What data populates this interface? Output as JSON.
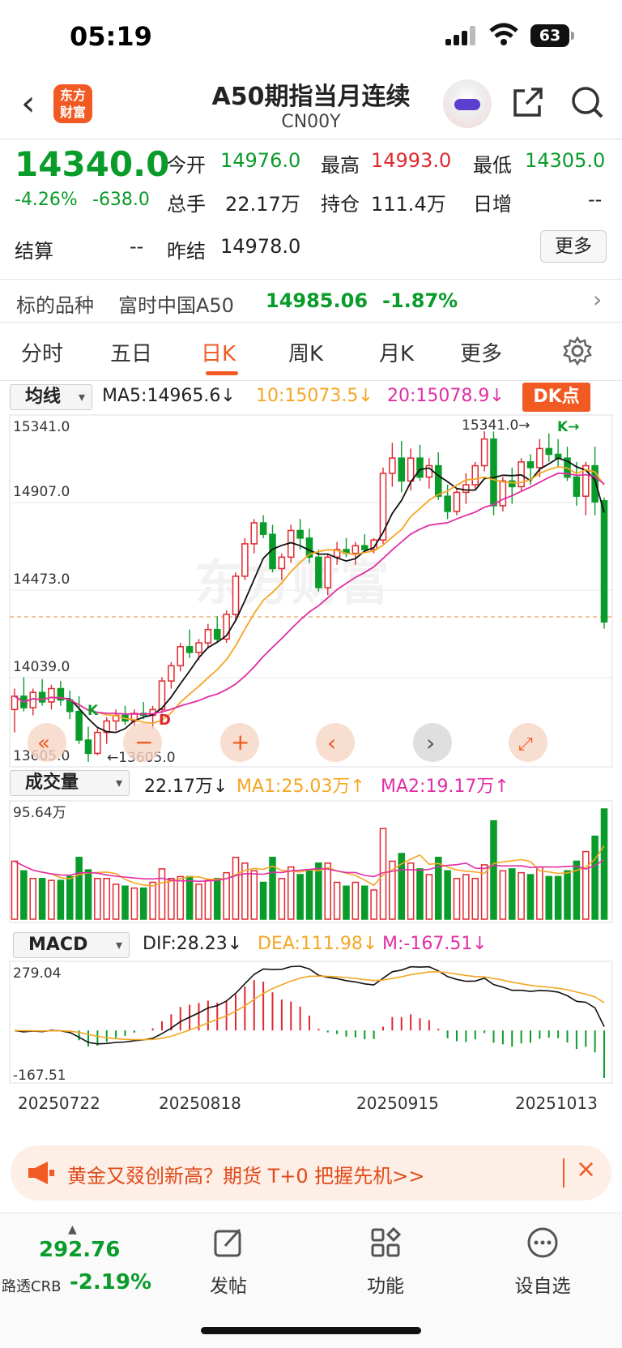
{
  "status": {
    "time": "05:19",
    "battery": "63"
  },
  "header": {
    "logo_text": "东方财富",
    "title": "A50期指当月连续",
    "code": "CN00Y"
  },
  "quote": {
    "price": "14340.0",
    "change_pct": "-4.26%",
    "change": "-638.0",
    "open_label": "今开",
    "open": "14976.0",
    "high_label": "最高",
    "high": "14993.0",
    "low_label": "最低",
    "low": "14305.0",
    "volume_label": "总手",
    "volume": "22.17万",
    "oi_label": "持仓",
    "oi": "111.4万",
    "day_inc_label": "日增",
    "day_inc": "--",
    "settle_label": "结算",
    "settle": "--",
    "prev_settle_label": "昨结",
    "prev_settle": "14978.0",
    "more_label": "更多"
  },
  "underlying": {
    "label": "标的品种",
    "name": "富时中国A50",
    "price": "14985.06",
    "change": "-1.87%"
  },
  "tabs": [
    "分时",
    "五日",
    "日K",
    "周K",
    "月K",
    "更多"
  ],
  "active_tab": "日K",
  "kline": {
    "selector": "均线",
    "ma5": "MA5:14965.6↓",
    "ma10": "10:15073.5↓",
    "ma20": "20:15078.9↓",
    "dk_label": "DK点",
    "y_labels": [
      "15341.0",
      "14907.0",
      "14473.0",
      "14039.0",
      "13605.0"
    ],
    "max_marker": "15341.0→",
    "min_marker": "←13605.0",
    "marker_k": "K",
    "marker_d": "D",
    "marker_k2": "K→",
    "watermark": "东方财富"
  },
  "volume": {
    "selector": "成交量",
    "value": "22.17万↓",
    "ma1": "MA1:25.03万↑",
    "ma2": "MA2:19.17万↑",
    "max_label": "95.64万"
  },
  "macd": {
    "selector": "MACD",
    "dif": "DIF:28.23↓",
    "dea": "DEA:111.98↓",
    "m": "M:-167.51↓",
    "top_label": "279.04",
    "bottom_label": "-167.51"
  },
  "dates": [
    "20250722",
    "20250818",
    "20250915",
    "20251013"
  ],
  "banner": {
    "text": "黄金又叕创新高？期货 T+0 把握先机>>"
  },
  "tabbar": {
    "crb_value": "292.76",
    "crb_label": "路透CRB",
    "crb_change": "-2.19%",
    "post": "发帖",
    "func": "功能",
    "watch": "设自选"
  },
  "colors": {
    "up": "#e0282f",
    "down": "#0a9c2a",
    "accent": "#f15a22",
    "ma10": "#f5a623",
    "ma20": "#e02ea6"
  },
  "chart_data": {
    "type": "candlestick",
    "note": "Daily K-line, price axis labels 13605.0 to 15341.0",
    "ylim": [
      13605,
      15341
    ],
    "candles": [
      [
        13880,
        13990,
        13760,
        13950
      ],
      [
        13950,
        14050,
        13870,
        13890
      ],
      [
        13890,
        13990,
        13850,
        13970
      ],
      [
        13970,
        14040,
        13900,
        13920
      ],
      [
        13920,
        14010,
        13880,
        13990
      ],
      [
        13990,
        14030,
        13900,
        13930
      ],
      [
        13930,
        13980,
        13830,
        13870
      ],
      [
        13870,
        13950,
        13700,
        13720
      ],
      [
        13720,
        13790,
        13605,
        13650
      ],
      [
        13650,
        13780,
        13640,
        13760
      ],
      [
        13760,
        13840,
        13700,
        13820
      ],
      [
        13820,
        13880,
        13770,
        13850
      ],
      [
        13850,
        13900,
        13800,
        13820
      ],
      [
        13820,
        13880,
        13790,
        13860
      ],
      [
        13860,
        13920,
        13830,
        13850
      ],
      [
        13850,
        13900,
        13780,
        13880
      ],
      [
        13880,
        14050,
        13860,
        14030
      ],
      [
        14030,
        14130,
        13990,
        14110
      ],
      [
        14110,
        14230,
        14080,
        14210
      ],
      [
        14210,
        14300,
        14150,
        14180
      ],
      [
        14180,
        14250,
        14140,
        14230
      ],
      [
        14230,
        14330,
        14200,
        14300
      ],
      [
        14300,
        14370,
        14230,
        14250
      ],
      [
        14250,
        14400,
        14230,
        14380
      ],
      [
        14380,
        14600,
        14350,
        14580
      ],
      [
        14580,
        14780,
        14560,
        14750
      ],
      [
        14750,
        14880,
        14700,
        14860
      ],
      [
        14860,
        14900,
        14780,
        14800
      ],
      [
        14800,
        14850,
        14600,
        14620
      ],
      [
        14620,
        14700,
        14560,
        14680
      ],
      [
        14680,
        14850,
        14650,
        14820
      ],
      [
        14820,
        14880,
        14720,
        14780
      ],
      [
        14780,
        14830,
        14650,
        14680
      ],
      [
        14680,
        14720,
        14500,
        14520
      ],
      [
        14520,
        14700,
        14480,
        14680
      ],
      [
        14680,
        14760,
        14640,
        14720
      ],
      [
        14720,
        14780,
        14680,
        14700
      ],
      [
        14700,
        14760,
        14640,
        14740
      ],
      [
        14740,
        14800,
        14700,
        14720
      ],
      [
        14720,
        14780,
        14700,
        14770
      ],
      [
        14770,
        15150,
        14750,
        15120
      ],
      [
        15120,
        15280,
        15050,
        15200
      ],
      [
        15200,
        15290,
        15020,
        15080
      ],
      [
        15080,
        15250,
        15030,
        15200
      ],
      [
        15200,
        15270,
        15080,
        15100
      ],
      [
        15100,
        15200,
        15040,
        15160
      ],
      [
        15160,
        15230,
        14980,
        15000
      ],
      [
        15000,
        15060,
        14880,
        14920
      ],
      [
        14920,
        15040,
        14900,
        15020
      ],
      [
        15020,
        15120,
        14960,
        15060
      ],
      [
        15060,
        15180,
        15040,
        15160
      ],
      [
        15160,
        15341,
        15130,
        15300
      ],
      [
        15300,
        15340,
        14900,
        14950
      ],
      [
        14950,
        15100,
        14920,
        15080
      ],
      [
        15080,
        15150,
        14960,
        15050
      ],
      [
        15050,
        15200,
        15030,
        15180
      ],
      [
        15180,
        15220,
        15060,
        15150
      ],
      [
        15150,
        15300,
        15100,
        15250
      ],
      [
        15250,
        15330,
        15180,
        15220
      ],
      [
        15220,
        15300,
        15150,
        15200
      ],
      [
        15200,
        15260,
        15080,
        15100
      ],
      [
        15100,
        15180,
        14950,
        15000
      ],
      [
        15000,
        15180,
        14900,
        15160
      ],
      [
        15160,
        15260,
        14900,
        14970
      ],
      [
        14976,
        14993,
        14305,
        14340
      ]
    ]
  }
}
